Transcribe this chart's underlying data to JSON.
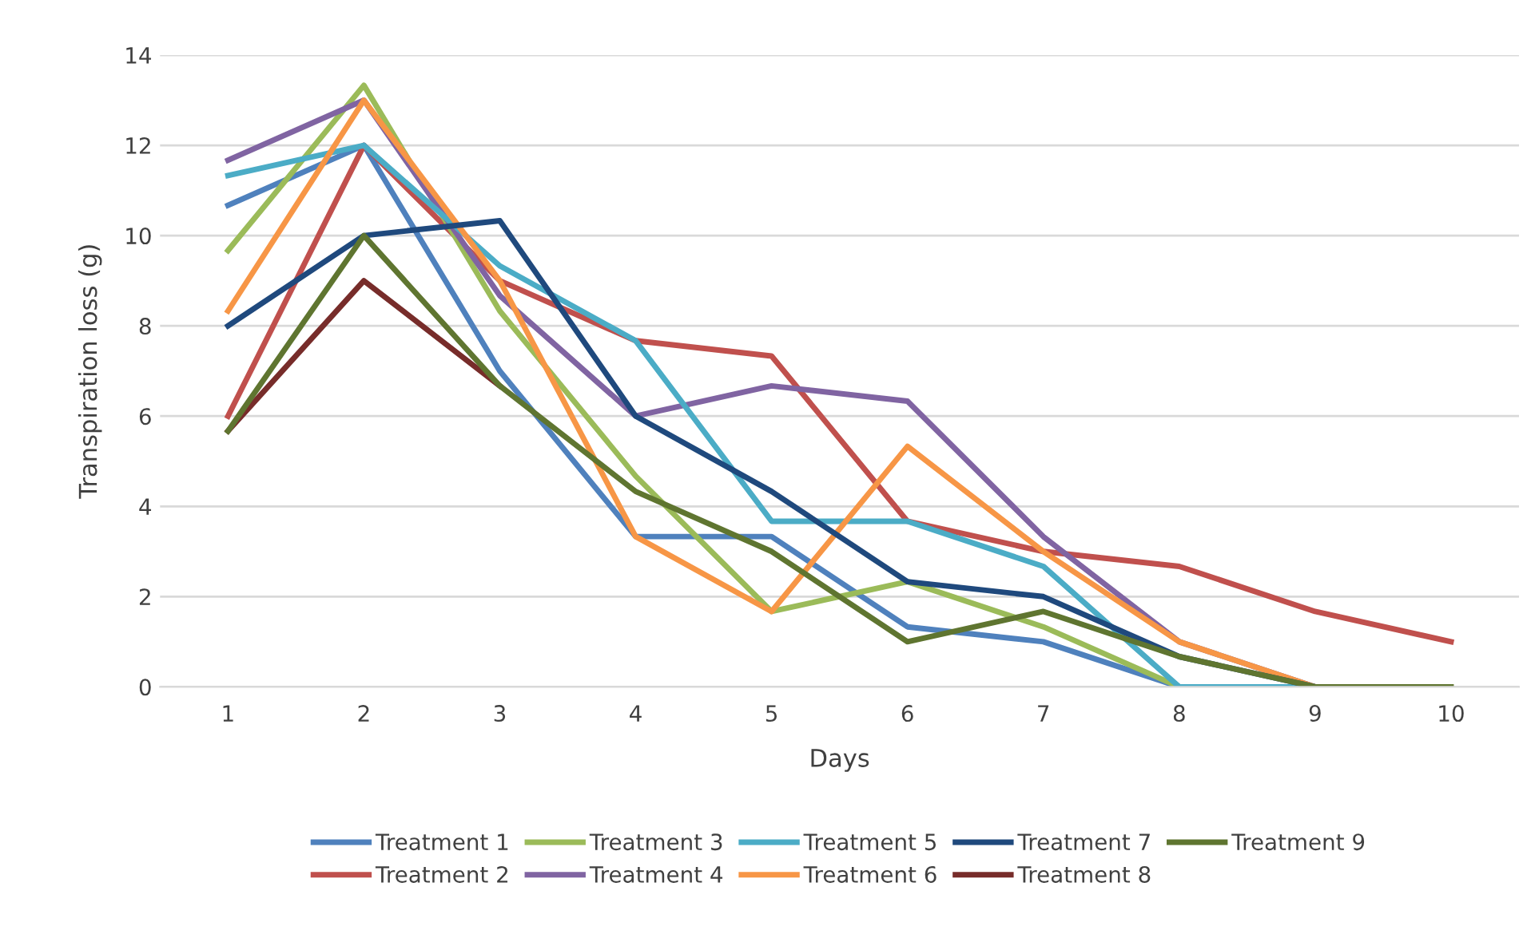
{
  "chart_data": {
    "type": "line",
    "xlabel": "Days",
    "ylabel": "Transpiration loss (g)",
    "categories": [
      "1",
      "2",
      "3",
      "4",
      "5",
      "6",
      "7",
      "8",
      "9",
      "10"
    ],
    "ylim": [
      0,
      14
    ],
    "yticks": [
      0,
      2,
      4,
      6,
      8,
      10,
      12,
      14
    ],
    "grid": "y",
    "legend": "bottom",
    "marker": "none",
    "line_style": "solid",
    "series": [
      {
        "name": "Treatment 1",
        "color": "#4f81bd",
        "values": [
          10.67,
          12,
          7,
          3.33,
          3.33,
          1.33,
          1,
          0,
          0,
          null
        ]
      },
      {
        "name": "Treatment 2",
        "color": "#c0504d",
        "values": [
          6,
          12,
          9,
          7.67,
          7.33,
          3.67,
          3,
          2.67,
          1.67,
          1
        ]
      },
      {
        "name": "Treatment 3",
        "color": "#9bbb59",
        "values": [
          9.67,
          13.33,
          8.33,
          4.67,
          1.67,
          2.33,
          1.33,
          0,
          0,
          null
        ]
      },
      {
        "name": "Treatment 4",
        "color": "#8064a2",
        "values": [
          11.67,
          13,
          8.67,
          6,
          6.67,
          6.33,
          3.33,
          1,
          0,
          null
        ]
      },
      {
        "name": "Treatment 5",
        "color": "#4bacc6",
        "values": [
          11.33,
          12,
          9.33,
          7.67,
          3.67,
          3.67,
          2.67,
          0,
          0,
          null
        ]
      },
      {
        "name": "Treatment 6",
        "color": "#f79646",
        "values": [
          8.33,
          13,
          9,
          3.33,
          1.67,
          5.33,
          3,
          1,
          0,
          null
        ]
      },
      {
        "name": "Treatment 7",
        "color": "#1f497d",
        "values": [
          8,
          10,
          10.33,
          6,
          4.33,
          2.33,
          2,
          0.67,
          0,
          null
        ]
      },
      {
        "name": "Treatment 8",
        "color": "#772c2a",
        "values": [
          5.67,
          9,
          6.67,
          null,
          null,
          null,
          null,
          null,
          null,
          null
        ]
      },
      {
        "name": "Treatment 9",
        "color": "#5f7530",
        "values": [
          5.67,
          10,
          6.67,
          4.33,
          3,
          1,
          1.67,
          0.67,
          0,
          0
        ]
      }
    ]
  }
}
